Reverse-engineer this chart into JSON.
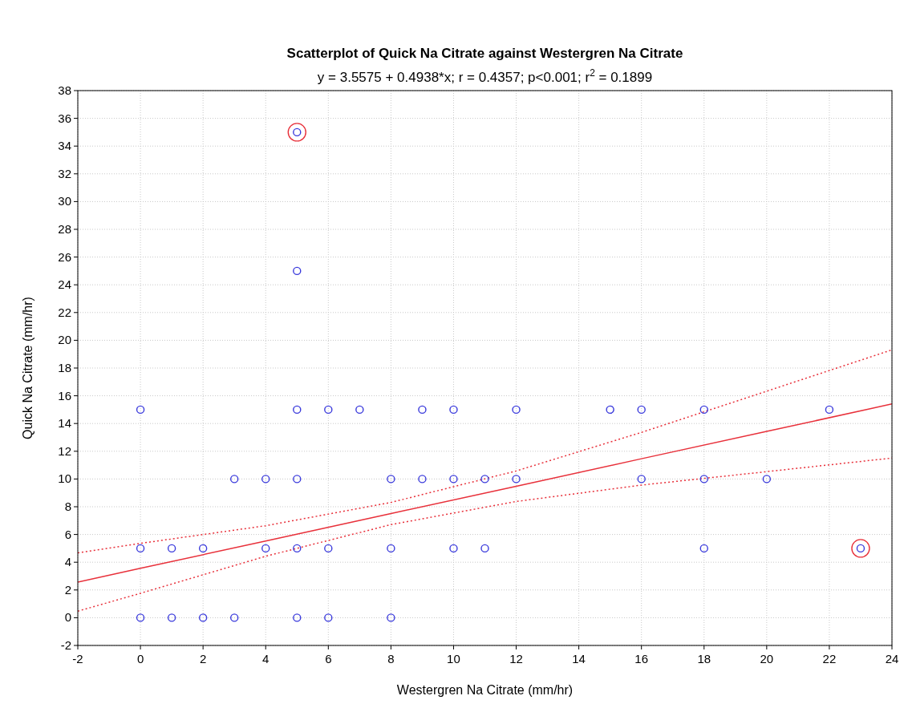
{
  "chart_data": {
    "type": "scatter",
    "title": "Scatterplot of Quick Na Citrate against Westergren Na Citrate",
    "subtitle": "y = 3.5575 + 0.4938*x;  r = 0.4357; p<0.001; r$^{2}$ = 0.1899",
    "xlabel": "Westergren Na Citrate  (mm/hr)",
    "ylabel": "Quick Na Citrate  (mm/hr)",
    "xlim": [
      -2,
      24
    ],
    "xticks": [
      -2,
      0,
      2,
      4,
      6,
      8,
      10,
      12,
      14,
      16,
      18,
      20,
      22,
      24
    ],
    "ylim": [
      -2,
      38
    ],
    "yticks": [
      -2,
      0,
      2,
      4,
      6,
      8,
      10,
      12,
      14,
      16,
      18,
      20,
      22,
      24,
      26,
      28,
      30,
      32,
      34,
      36,
      38
    ],
    "grid": true,
    "marker": "circle",
    "series": [
      {
        "color": "#3b3bdc",
        "x": [
          0,
          5,
          6,
          7,
          9,
          10,
          12,
          15,
          16,
          18,
          22,
          3,
          4,
          5,
          8,
          9,
          10,
          11,
          12,
          16,
          18,
          20,
          0,
          1,
          2,
          4,
          5,
          6,
          8,
          10,
          11,
          18,
          23,
          0,
          1,
          2,
          3,
          5,
          6,
          8,
          5,
          5
        ],
        "values": [
          15,
          15,
          15,
          15,
          15,
          15,
          15,
          15,
          15,
          15,
          15,
          10,
          10,
          10,
          10,
          10,
          10,
          10,
          10,
          10,
          10,
          10,
          5,
          5,
          5,
          5,
          5,
          5,
          5,
          5,
          5,
          5,
          5,
          0,
          0,
          0,
          0,
          0,
          0,
          0,
          25,
          35
        ]
      },
      {
        "type": "scatter",
        "color": "#e8303a",
        "x": [
          5,
          23
        ],
        "values": [
          35,
          5
        ]
      },
      {
        "type": "line",
        "color": "#e8303a",
        "line_style": "solid",
        "marker": "none",
        "x": [
          -2,
          0,
          4,
          8,
          12,
          16,
          20,
          24
        ],
        "values": [
          2.57,
          3.56,
          5.53,
          7.51,
          9.48,
          11.46,
          13.43,
          15.41
        ]
      },
      {
        "type": "line",
        "color": "#e8303a",
        "line_style": "dotted",
        "marker": "none",
        "x": [
          -2,
          0,
          4,
          8,
          12,
          16,
          20,
          24
        ],
        "values": [
          0.47,
          1.76,
          4.43,
          6.71,
          8.38,
          9.56,
          10.53,
          11.51
        ]
      },
      {
        "type": "line",
        "color": "#e8303a",
        "line_style": "dotted",
        "marker": "none",
        "x": [
          -2,
          0,
          4,
          8,
          12,
          16,
          20,
          24
        ],
        "values": [
          4.67,
          5.36,
          6.63,
          8.31,
          10.58,
          13.36,
          16.33,
          19.31
        ]
      }
    ]
  }
}
